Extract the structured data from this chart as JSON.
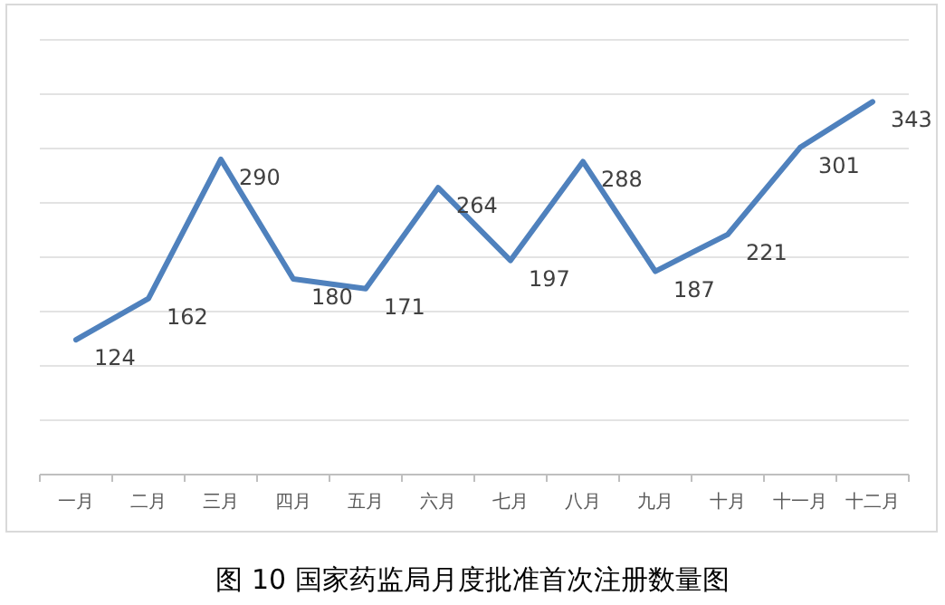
{
  "chart_data": {
    "type": "line",
    "title": "图 10  国家药监局月度批准首次注册数量图",
    "categories": [
      "一月",
      "二月",
      "三月",
      "四月",
      "五月",
      "六月",
      "七月",
      "八月",
      "九月",
      "十月",
      "十一月",
      "十二月"
    ],
    "series": [
      {
        "color": "#4f81bd",
        "values": [
          124,
          162,
          290,
          180,
          171,
          264,
          197,
          288,
          187,
          221,
          301,
          343
        ]
      }
    ],
    "ylim": [
      0,
      400
    ],
    "yticks": [
      {
        "value": 0,
        "label": null
      },
      {
        "value": 50,
        "label": null
      },
      {
        "value": 100,
        "label": null
      },
      {
        "value": 150,
        "label": null
      },
      {
        "value": 200,
        "label": null
      },
      {
        "value": 250,
        "label": null
      },
      {
        "value": 300,
        "label": null
      },
      {
        "value": 350,
        "label": null
      },
      {
        "value": 400,
        "label": null
      }
    ],
    "grid": "y",
    "tick_labels": "x",
    "data_labels": true,
    "marker": "none",
    "line_style": "solid"
  }
}
